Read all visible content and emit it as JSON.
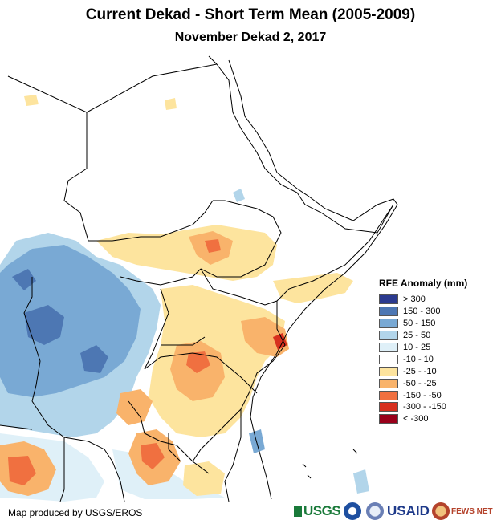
{
  "title": "Current Dekad - Short Term Mean (2005-2009)",
  "subtitle": "November Dekad 2, 2017",
  "legend": {
    "title": "RFE Anomaly (mm)",
    "items": [
      {
        "label": "> 300",
        "color": "#2b3a8f"
      },
      {
        "label": "150 - 300",
        "color": "#4d77b3"
      },
      {
        "label": "50 - 150",
        "color": "#79a9d4"
      },
      {
        "label": "25 - 50",
        "color": "#b2d5ea"
      },
      {
        "label": "10 - 25",
        "color": "#dff0f8"
      },
      {
        "label": "-10 - 10",
        "color": "#ffffff"
      },
      {
        "label": "-25 - -10",
        "color": "#fde49e"
      },
      {
        "label": "-50 - -25",
        "color": "#f9b36b"
      },
      {
        "label": "-150 - -50",
        "color": "#f07040"
      },
      {
        "label": "-300 - -150",
        "color": "#d7301f"
      },
      {
        "label": "< -300",
        "color": "#99001a"
      }
    ]
  },
  "credit": "Map produced by USGS/EROS",
  "logos": {
    "usgs": "USGS",
    "usaid": "USAID",
    "fews": "FEWS NET"
  }
}
